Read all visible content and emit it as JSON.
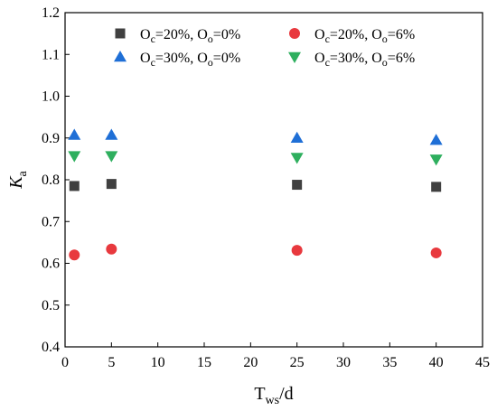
{
  "chart_data": {
    "type": "scatter",
    "x_axis": {
      "label_main": "T",
      "label_sub": "ws",
      "label_suffix": "/d",
      "range": [
        0,
        45
      ],
      "ticks": [
        0,
        5,
        10,
        15,
        20,
        25,
        30,
        35,
        40,
        45
      ]
    },
    "y_axis": {
      "label_main": "K",
      "label_sub": "a",
      "range": [
        0.4,
        1.2
      ],
      "ticks": [
        "0.4",
        "0.5",
        "0.6",
        "0.7",
        "0.8",
        "0.9",
        "1.0",
        "1.1",
        "1.2"
      ]
    },
    "grid": false,
    "legend_position": "top",
    "series": [
      {
        "marker": "square",
        "color": "#404040",
        "legend_parts": [
          [
            "O",
            ""
          ],
          [
            "c",
            "sub"
          ],
          [
            "=20%, O",
            ""
          ],
          [
            "o",
            "sub"
          ],
          [
            "=0%",
            ""
          ]
        ],
        "points": [
          [
            1,
            0.785
          ],
          [
            5,
            0.79
          ],
          [
            25,
            0.788
          ],
          [
            40,
            0.783
          ]
        ]
      },
      {
        "marker": "circle",
        "color": "#e8393e",
        "legend_parts": [
          [
            "O",
            ""
          ],
          [
            "c",
            "sub"
          ],
          [
            "=20%, O",
            ""
          ],
          [
            "o",
            "sub"
          ],
          [
            "=6%",
            ""
          ]
        ],
        "points": [
          [
            1,
            0.62
          ],
          [
            5,
            0.634
          ],
          [
            25,
            0.631
          ],
          [
            40,
            0.625
          ]
        ]
      },
      {
        "marker": "triangle-up",
        "color": "#1f6fd6",
        "legend_parts": [
          [
            "O",
            ""
          ],
          [
            "c",
            "sub"
          ],
          [
            "=30%, O",
            ""
          ],
          [
            "o",
            "sub"
          ],
          [
            "=0%",
            ""
          ]
        ],
        "points": [
          [
            1,
            0.907
          ],
          [
            5,
            0.907
          ],
          [
            25,
            0.9
          ],
          [
            40,
            0.895
          ]
        ]
      },
      {
        "marker": "triangle-down",
        "color": "#2eaf5e",
        "legend_parts": [
          [
            "O",
            ""
          ],
          [
            "c",
            "sub"
          ],
          [
            "=30%, O",
            ""
          ],
          [
            "o",
            "sub"
          ],
          [
            "=6%",
            ""
          ]
        ],
        "points": [
          [
            1,
            0.857
          ],
          [
            5,
            0.857
          ],
          [
            25,
            0.853
          ],
          [
            40,
            0.849
          ]
        ]
      }
    ]
  }
}
